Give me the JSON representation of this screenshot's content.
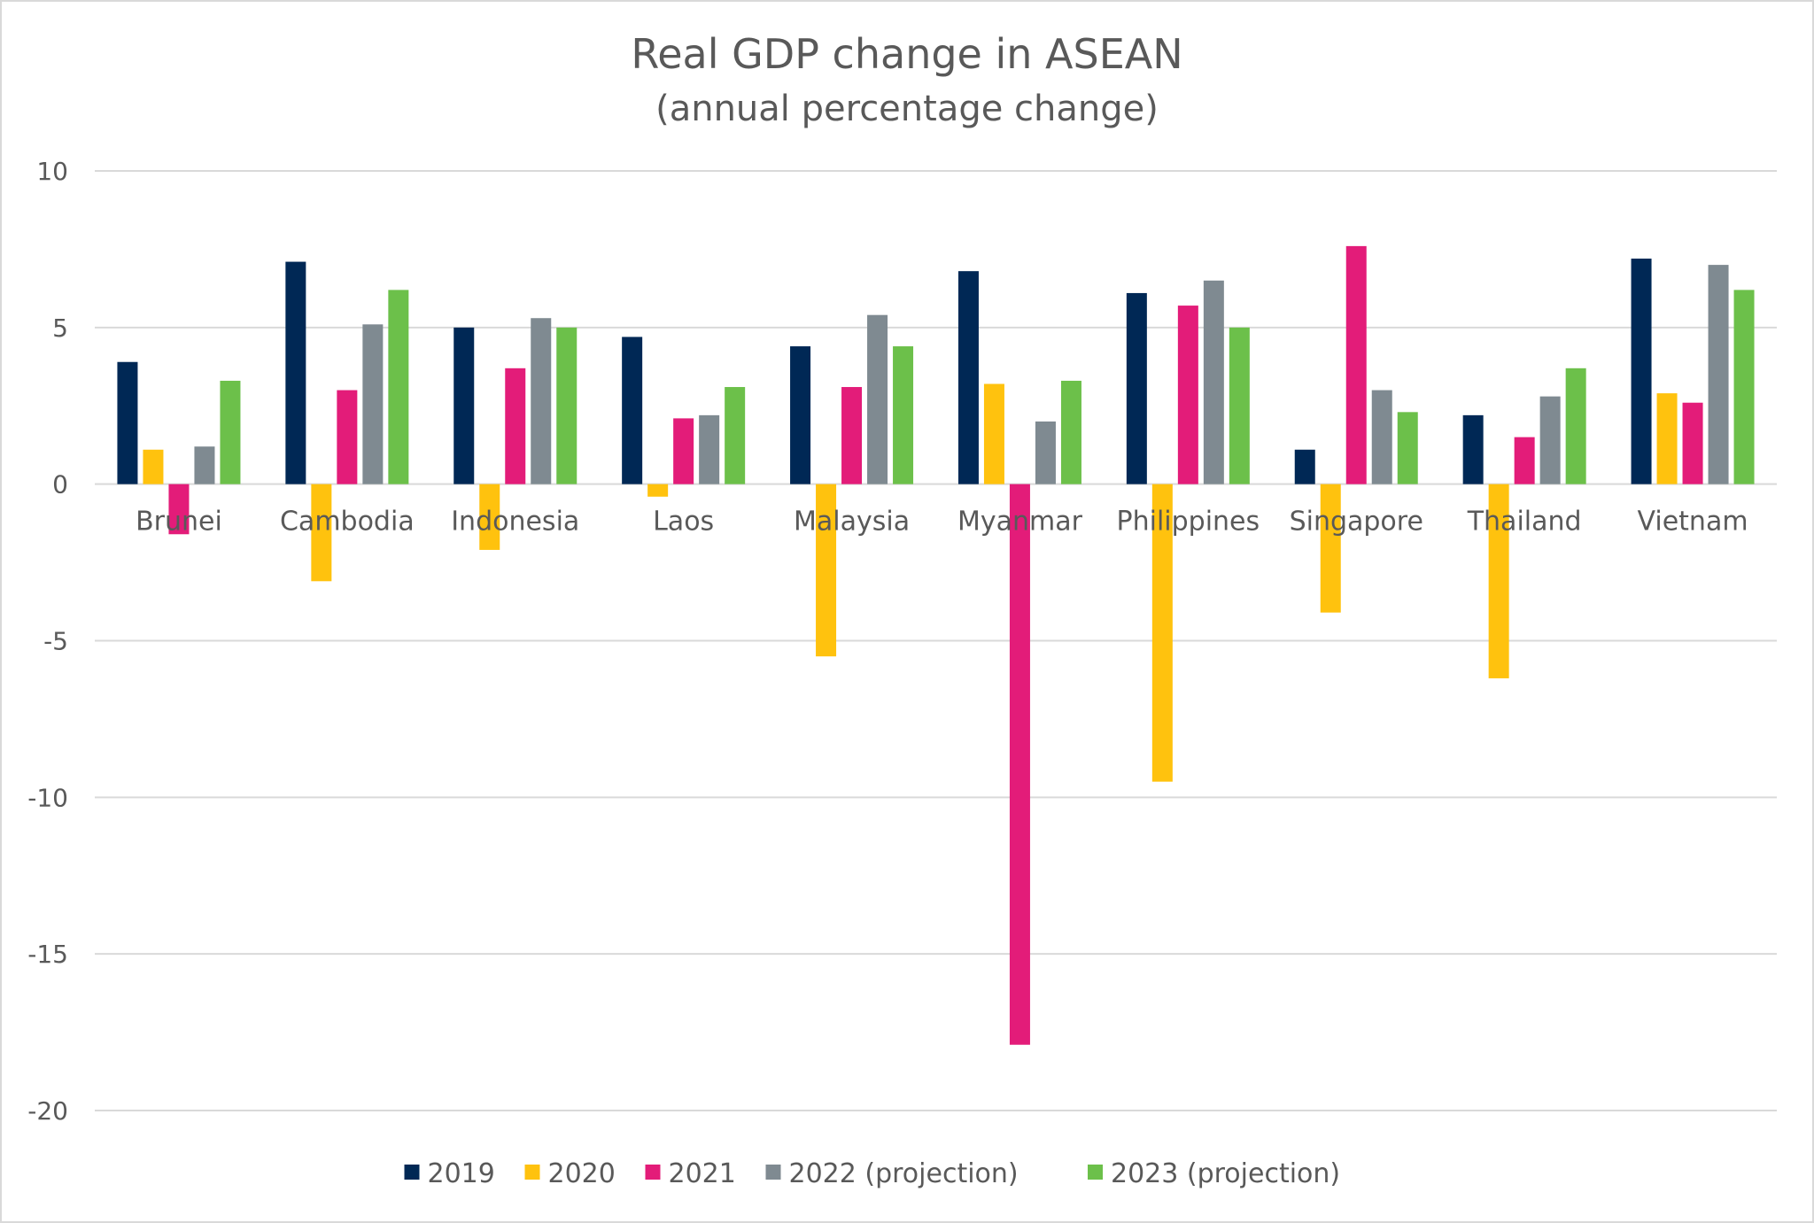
{
  "chart_data": {
    "type": "bar",
    "title": "Real GDP change in ASEAN",
    "subtitle": "(annual percentage change)",
    "xlabel": "",
    "ylabel": "",
    "ylim": [
      -20,
      10
    ],
    "yticks": [
      10,
      5,
      0,
      -5,
      -10,
      -15,
      -20
    ],
    "grid": true,
    "legend_position": "bottom",
    "categories": [
      "Brunei",
      "Cambodia",
      "Indonesia",
      "Laos",
      "Malaysia",
      "Myanmar",
      "Philippines",
      "Singapore",
      "Thailand",
      "Vietnam"
    ],
    "series": [
      {
        "name": "2019",
        "color": "#002855",
        "values": [
          3.9,
          7.1,
          5.0,
          4.7,
          4.4,
          6.8,
          6.1,
          1.1,
          2.2,
          7.2
        ]
      },
      {
        "name": "2020",
        "color": "#FFC20E",
        "values": [
          1.1,
          -3.1,
          -2.1,
          -0.4,
          -5.5,
          3.2,
          -9.5,
          -4.1,
          -6.2,
          2.9
        ]
      },
      {
        "name": "2021",
        "color": "#E31C79",
        "values": [
          -1.6,
          3.0,
          3.7,
          2.1,
          3.1,
          -17.9,
          5.7,
          7.6,
          1.5,
          2.6
        ]
      },
      {
        "name": "2022 (projection)",
        "color": "#7F8A91",
        "values": [
          1.2,
          5.1,
          5.3,
          2.2,
          5.4,
          2.0,
          6.5,
          3.0,
          2.8,
          7.0
        ]
      },
      {
        "name": "2023 (projection)",
        "color": "#6CC04A",
        "values": [
          3.3,
          6.2,
          5.0,
          3.1,
          4.4,
          3.3,
          5.0,
          2.3,
          3.7,
          6.2
        ]
      }
    ]
  }
}
